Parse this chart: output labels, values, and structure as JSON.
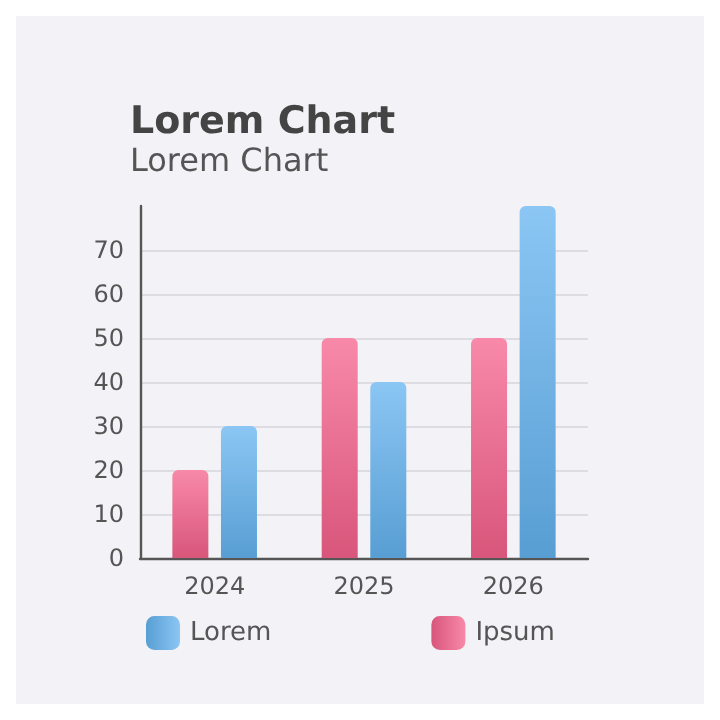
{
  "chart_data": {
    "type": "bar",
    "title": "Lorem Chart",
    "subtitle": "Lorem Chart",
    "categories": [
      "2024",
      "2025",
      "2026"
    ],
    "series": [
      {
        "name": "Ipsum",
        "color": "#f6628c",
        "values": [
          20,
          50,
          50
        ]
      },
      {
        "name": "Lorem",
        "color": "#64b3f0",
        "values": [
          30,
          40,
          80
        ]
      }
    ],
    "ylim": [
      0,
      80
    ],
    "yticks": [
      0,
      10,
      20,
      30,
      40,
      50,
      60,
      70
    ],
    "grid": "y",
    "legend": "bottom left"
  }
}
